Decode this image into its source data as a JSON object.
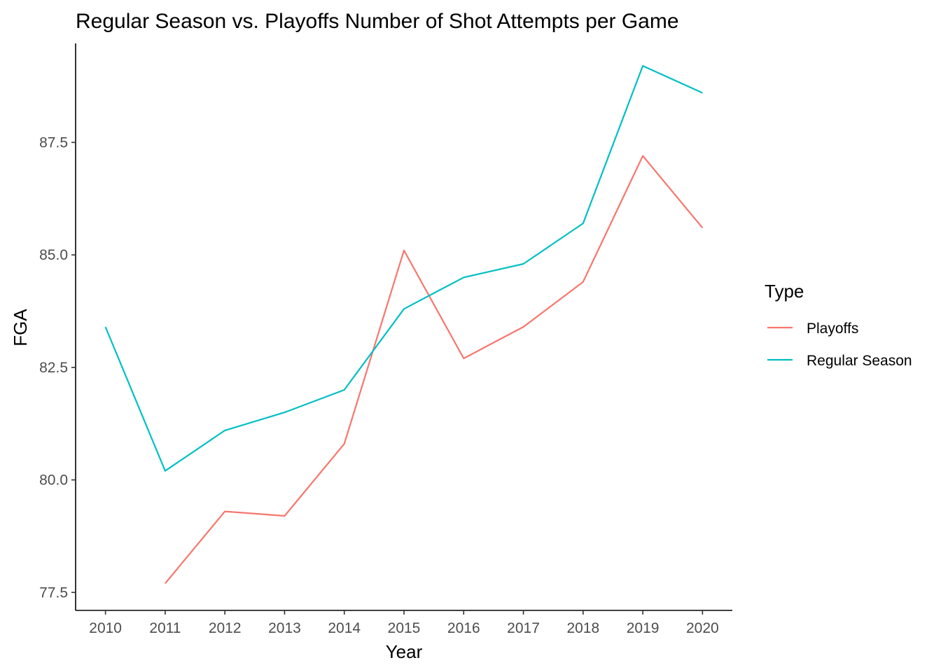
{
  "chart_data": {
    "type": "line",
    "title": "Regular Season vs. Playoffs Number of Shot Attempts per Game",
    "xlabel": "Year",
    "ylabel": "FGA",
    "x": [
      2010,
      2011,
      2012,
      2013,
      2014,
      2015,
      2016,
      2017,
      2018,
      2019,
      2020
    ],
    "xlim": [
      2009.5,
      2020.5
    ],
    "ylim": [
      77.1,
      89.7
    ],
    "yticks": [
      77.5,
      80.0,
      82.5,
      85.0,
      87.5
    ],
    "ytick_labels": [
      "77.5",
      "80.0",
      "82.5",
      "85.0",
      "87.5"
    ],
    "xtick_labels": [
      "2010",
      "2011",
      "2012",
      "2013",
      "2014",
      "2015",
      "2016",
      "2017",
      "2018",
      "2019",
      "2020"
    ],
    "grid": false,
    "legend": {
      "title": "Type",
      "position": "right"
    },
    "series": [
      {
        "name": "Playoffs",
        "color": "#f8766d",
        "values": [
          null,
          77.7,
          79.3,
          79.2,
          80.8,
          85.1,
          82.7,
          83.4,
          84.4,
          87.2,
          85.6
        ]
      },
      {
        "name": "Regular Season",
        "color": "#00bfc4",
        "values": [
          83.4,
          80.2,
          81.1,
          81.5,
          82.0,
          83.8,
          84.5,
          84.8,
          85.7,
          89.2,
          88.6
        ]
      }
    ]
  }
}
